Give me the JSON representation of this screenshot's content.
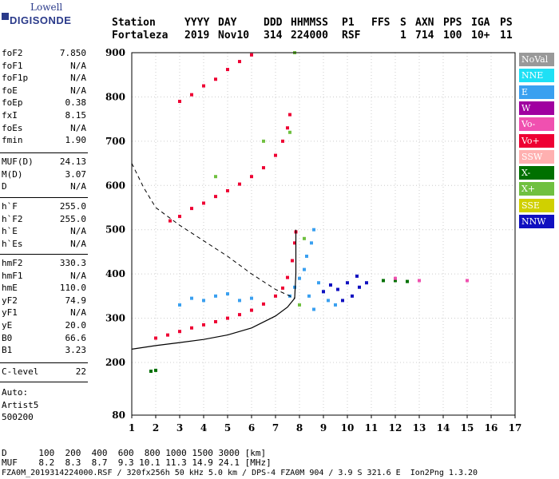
{
  "logo": {
    "line1": "Lowell",
    "line2": "DIGISONDE"
  },
  "header": {
    "labels": [
      "Station",
      "YYYY",
      "DAY",
      "DDD",
      "HHMMSS",
      "P1",
      "FFS",
      "S",
      "AXN",
      "PPS",
      "IGA",
      "PS"
    ],
    "values": [
      "Fortaleza",
      "2019",
      "Nov10",
      "314",
      "224000",
      "RSF",
      "1",
      "714",
      "100",
      "10+",
      "11"
    ]
  },
  "params_group1": [
    {
      "name": "foF2",
      "value": "7.850"
    },
    {
      "name": "foF1",
      "value": "N/A"
    },
    {
      "name": "foF1p",
      "value": "N/A"
    },
    {
      "name": "foE",
      "value": "N/A"
    },
    {
      "name": "foEp",
      "value": "0.38"
    },
    {
      "name": "fxI",
      "value": "8.15"
    },
    {
      "name": "foEs",
      "value": "N/A"
    },
    {
      "name": "fmin",
      "value": "1.90"
    }
  ],
  "params_group2": [
    {
      "name": "MUF(D)",
      "value": "24.13"
    },
    {
      "name": "M(D)",
      "value": "3.07"
    },
    {
      "name": "D",
      "value": "N/A"
    }
  ],
  "params_group3": [
    {
      "name": "h`F",
      "value": "255.0"
    },
    {
      "name": "h`F2",
      "value": "255.0"
    },
    {
      "name": "h`E",
      "value": "N/A"
    },
    {
      "name": "h`Es",
      "value": "N/A"
    }
  ],
  "params_group4": [
    {
      "name": "hmF2",
      "value": "330.3"
    },
    {
      "name": "hmF1",
      "value": "N/A"
    },
    {
      "name": "hmE",
      "value": "110.0"
    },
    {
      "name": "yF2",
      "value": "74.9"
    },
    {
      "name": "yF1",
      "value": "N/A"
    },
    {
      "name": "yE",
      "value": "20.0"
    },
    {
      "name": "B0",
      "value": "66.6"
    },
    {
      "name": "B1",
      "value": "3.23"
    }
  ],
  "params_group5": [
    {
      "name": "C-level",
      "value": "22"
    }
  ],
  "auto": {
    "line1": "Auto:",
    "line2": "Artist5",
    "line3": "500200"
  },
  "legend": [
    {
      "label": "NoVal",
      "color": "#999999"
    },
    {
      "label": "NNE",
      "color": "#1ee0f5"
    },
    {
      "label": "E",
      "color": "#3aa0f0"
    },
    {
      "label": "W",
      "color": "#a000a0"
    },
    {
      "label": "Vo-",
      "color": "#f050b0"
    },
    {
      "label": "Vo+",
      "color": "#ee0033"
    },
    {
      "label": "SSW",
      "color": "#ffb0b0"
    },
    {
      "label": "X-",
      "color": "#007000"
    },
    {
      "label": "X+",
      "color": "#70c040"
    },
    {
      "label": "SSE",
      "color": "#d0d000"
    },
    {
      "label": "NNW",
      "color": "#1010c0"
    }
  ],
  "bottom": {
    "d_row": "D      100  200  400  600  800 1000 1500 3000 [km]",
    "muf_row": "MUF    8.2  8.3  8.7  9.3 10.1 11.3 14.9 24.1 [MHz]",
    "footer": "FZA0M_2019314224000.RSF / 320fx256h 50 kHz 5.0 km / DPS-4 FZA0M 904 / 3.9 S 321.6 E  Ion2Png 1.3.20"
  },
  "chart_data": {
    "type": "scatter",
    "xlim": [
      1,
      17
    ],
    "ylim": [
      80,
      900
    ],
    "x_ticks": [
      1,
      2,
      3,
      4,
      5,
      6,
      7,
      8,
      9,
      10,
      11,
      12,
      13,
      14,
      15,
      16,
      17
    ],
    "y_ticks": [
      80,
      200,
      300,
      400,
      500,
      600,
      700,
      800,
      900
    ],
    "grid": true,
    "series": [
      {
        "color": "#ee0033",
        "points": [
          [
            2.0,
            255
          ],
          [
            2.5,
            262
          ],
          [
            3.0,
            270
          ],
          [
            3.5,
            278
          ],
          [
            4.0,
            285
          ],
          [
            4.5,
            292
          ],
          [
            5.0,
            300
          ],
          [
            5.5,
            308
          ],
          [
            6.0,
            318
          ],
          [
            6.5,
            332
          ],
          [
            7.0,
            350
          ],
          [
            7.3,
            368
          ],
          [
            7.5,
            392
          ],
          [
            7.7,
            430
          ],
          [
            7.8,
            470
          ],
          [
            7.85,
            495
          ]
        ]
      },
      {
        "color": "#ee0033",
        "points": [
          [
            2.6,
            520
          ],
          [
            3.0,
            530
          ],
          [
            3.5,
            548
          ],
          [
            4.0,
            560
          ],
          [
            4.5,
            575
          ],
          [
            5.0,
            588
          ],
          [
            5.5,
            603
          ],
          [
            6.0,
            620
          ],
          [
            6.5,
            640
          ],
          [
            7.0,
            668
          ],
          [
            7.3,
            700
          ],
          [
            7.5,
            730
          ],
          [
            7.6,
            760
          ]
        ]
      },
      {
        "color": "#ee0033",
        "points": [
          [
            3.0,
            790
          ],
          [
            3.5,
            805
          ],
          [
            4.0,
            825
          ],
          [
            4.5,
            840
          ],
          [
            5.0,
            862
          ],
          [
            5.5,
            880
          ],
          [
            6.0,
            895
          ]
        ]
      },
      {
        "color": "#3aa0f0",
        "points": [
          [
            3.0,
            330
          ],
          [
            3.5,
            345
          ],
          [
            4.0,
            340
          ],
          [
            4.5,
            350
          ],
          [
            5.0,
            355
          ],
          [
            5.5,
            340
          ],
          [
            6.0,
            345
          ],
          [
            7.6,
            350
          ],
          [
            7.8,
            370
          ],
          [
            8.0,
            390
          ],
          [
            8.2,
            410
          ],
          [
            8.3,
            440
          ],
          [
            8.5,
            470
          ],
          [
            8.6,
            500
          ],
          [
            8.8,
            380
          ],
          [
            9.0,
            360
          ],
          [
            9.2,
            340
          ],
          [
            9.5,
            330
          ],
          [
            8.4,
            350
          ],
          [
            8.6,
            320
          ]
        ]
      },
      {
        "color": "#1010c0",
        "points": [
          [
            9.0,
            360
          ],
          [
            9.3,
            375
          ],
          [
            9.6,
            365
          ],
          [
            10.0,
            380
          ],
          [
            10.2,
            350
          ],
          [
            10.5,
            370
          ],
          [
            10.8,
            380
          ],
          [
            9.8,
            340
          ],
          [
            10.4,
            395
          ]
        ]
      },
      {
        "color": "#70c040",
        "points": [
          [
            8.2,
            480
          ],
          [
            8.0,
            330
          ],
          [
            7.6,
            720
          ],
          [
            7.8,
            900
          ],
          [
            6.5,
            700
          ],
          [
            4.5,
            620
          ]
        ]
      },
      {
        "color": "#007000",
        "points": [
          [
            1.8,
            180
          ],
          [
            2.0,
            182
          ],
          [
            11.5,
            385
          ],
          [
            12.0,
            385
          ],
          [
            12.5,
            383
          ]
        ]
      },
      {
        "color": "#f050b0",
        "points": [
          [
            13.0,
            385
          ],
          [
            15.0,
            385
          ],
          [
            12.0,
            390
          ]
        ]
      }
    ],
    "model_curve": [
      [
        1.0,
        230
      ],
      [
        2.0,
        238
      ],
      [
        3.0,
        245
      ],
      [
        4.0,
        252
      ],
      [
        5.0,
        262
      ],
      [
        6.0,
        278
      ],
      [
        7.0,
        305
      ],
      [
        7.5,
        325
      ],
      [
        7.8,
        345
      ],
      [
        7.85,
        400
      ],
      [
        7.85,
        500
      ]
    ],
    "dashed_curve": [
      [
        1.0,
        650
      ],
      [
        1.5,
        595
      ],
      [
        2.0,
        550
      ],
      [
        3.0,
        510
      ],
      [
        4.0,
        475
      ],
      [
        5.0,
        440
      ],
      [
        6.0,
        400
      ],
      [
        7.0,
        365
      ],
      [
        7.8,
        345
      ]
    ]
  }
}
